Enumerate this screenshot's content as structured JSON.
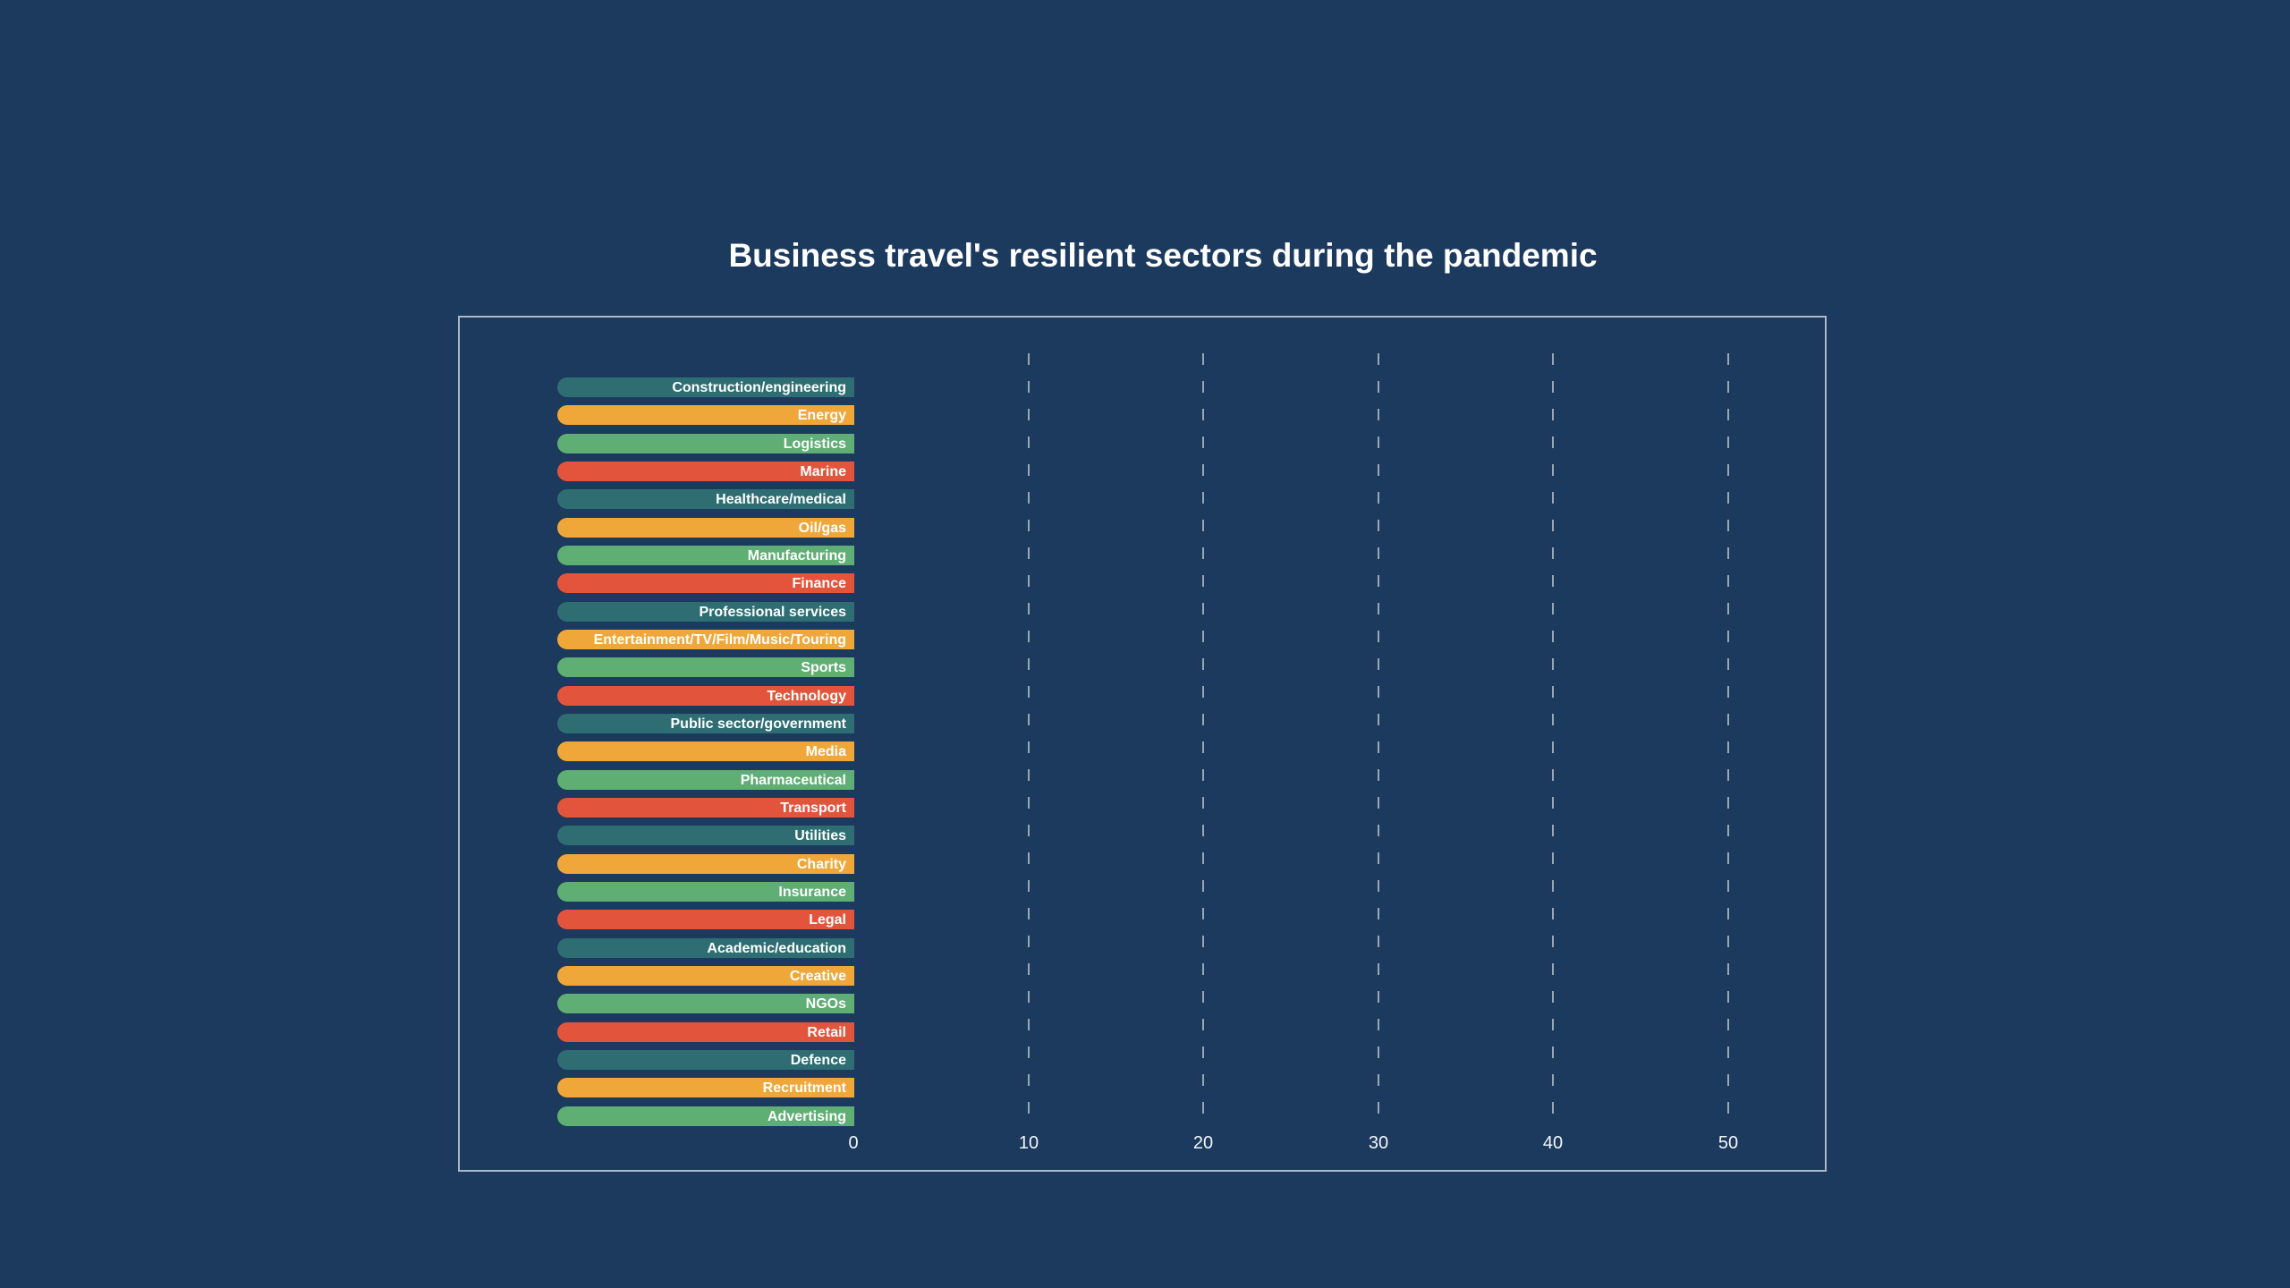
{
  "chart_data": {
    "type": "bar",
    "orientation": "horizontal",
    "title": "Business travel's resilient sectors during the pandemic",
    "categories": [
      "Construction/engineering",
      "Energy",
      "Logistics",
      "Marine",
      "Healthcare/medical",
      "Oil/gas",
      "Manufacturing",
      "Finance",
      "Professional services",
      "Entertainment/TV/Film/Music/Touring",
      "Sports",
      "Technology",
      "Public sector/government",
      "Media",
      "Pharmaceutical",
      "Transport",
      "Utilities",
      "Charity",
      "Insurance",
      "Legal",
      "Academic/education",
      "Creative",
      "NGOs",
      "Retail",
      "Defence",
      "Recruitment",
      "Advertising"
    ],
    "values": [
      0,
      0,
      0,
      0,
      0,
      0,
      0,
      0,
      0,
      0,
      0,
      0,
      0,
      0,
      0,
      0,
      0,
      0,
      0,
      0,
      0,
      0,
      0,
      0,
      0,
      0,
      0
    ],
    "xlabel": "",
    "ylabel": "",
    "xlim": [
      0,
      50
    ],
    "x_ticks": [
      "0",
      "10",
      "20",
      "30",
      "40",
      "50"
    ],
    "legend": "none",
    "grid": {
      "vertical_dashed_at": [
        10,
        20,
        30,
        40,
        50
      ]
    },
    "colors": {
      "background": "#1c3a5e",
      "palette": [
        "#2e6e73",
        "#f0a73a",
        "#5fae74",
        "#e2543c"
      ],
      "title_text": "#ffffff",
      "bar_label_text": "#ffffff",
      "axis_tick_text": "#f2f6fa",
      "gridline": "rgba(255,255,255,0.55)",
      "plot_border": "#a9b8c9"
    },
    "note": "All 27 bars are equal-length rounded pills ending at the 0 axis (zero values); category labels are right-aligned inside the pills."
  }
}
